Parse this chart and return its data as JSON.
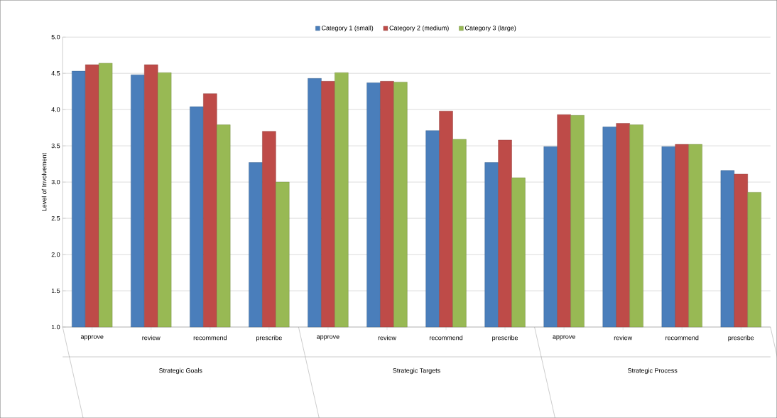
{
  "chart_data": {
    "type": "bar",
    "ylabel": "Level of Involvement",
    "categories": [
      "approve",
      "review",
      "recommend",
      "prescribe",
      "approve",
      "review",
      "recommend",
      "prescribe",
      "approve",
      "review",
      "recommend",
      "prescribe"
    ],
    "annotations": [
      "Strategic Goals",
      "Strategic Targets",
      "Strategic Process"
    ],
    "series": [
      {
        "name": "Category 1 (small)",
        "color": "#4a7ebb",
        "values": [
          4.53,
          4.48,
          4.04,
          3.27,
          4.43,
          4.37,
          3.71,
          3.27,
          3.49,
          3.76,
          3.49,
          3.16
        ]
      },
      {
        "name": "Category 2 (medium)",
        "color": "#be4b48",
        "values": [
          4.62,
          4.62,
          4.22,
          3.7,
          4.39,
          4.39,
          3.98,
          3.58,
          3.93,
          3.81,
          3.52,
          3.11
        ]
      },
      {
        "name": "Category 3 (large)",
        "color": "#98b954",
        "values": [
          4.64,
          4.51,
          3.79,
          3.0,
          4.51,
          4.38,
          3.59,
          3.06,
          3.92,
          3.79,
          3.52,
          2.86
        ]
      }
    ],
    "ylim": [
      1.0,
      5.0
    ],
    "yticks": [
      {
        "value": 1.0,
        "label": "1.0"
      },
      {
        "value": 1.5,
        "label": "1.5"
      },
      {
        "value": 2.0,
        "label": "2.0"
      },
      {
        "value": 2.5,
        "label": "2.5"
      },
      {
        "value": 3.0,
        "label": "3.0"
      },
      {
        "value": 3.5,
        "label": "3.5"
      },
      {
        "value": 4.0,
        "label": "4.0"
      },
      {
        "value": 4.5,
        "label": "4.5"
      },
      {
        "value": 5.0,
        "label": "5.0"
      }
    ],
    "grid": "y",
    "legend": "top"
  }
}
